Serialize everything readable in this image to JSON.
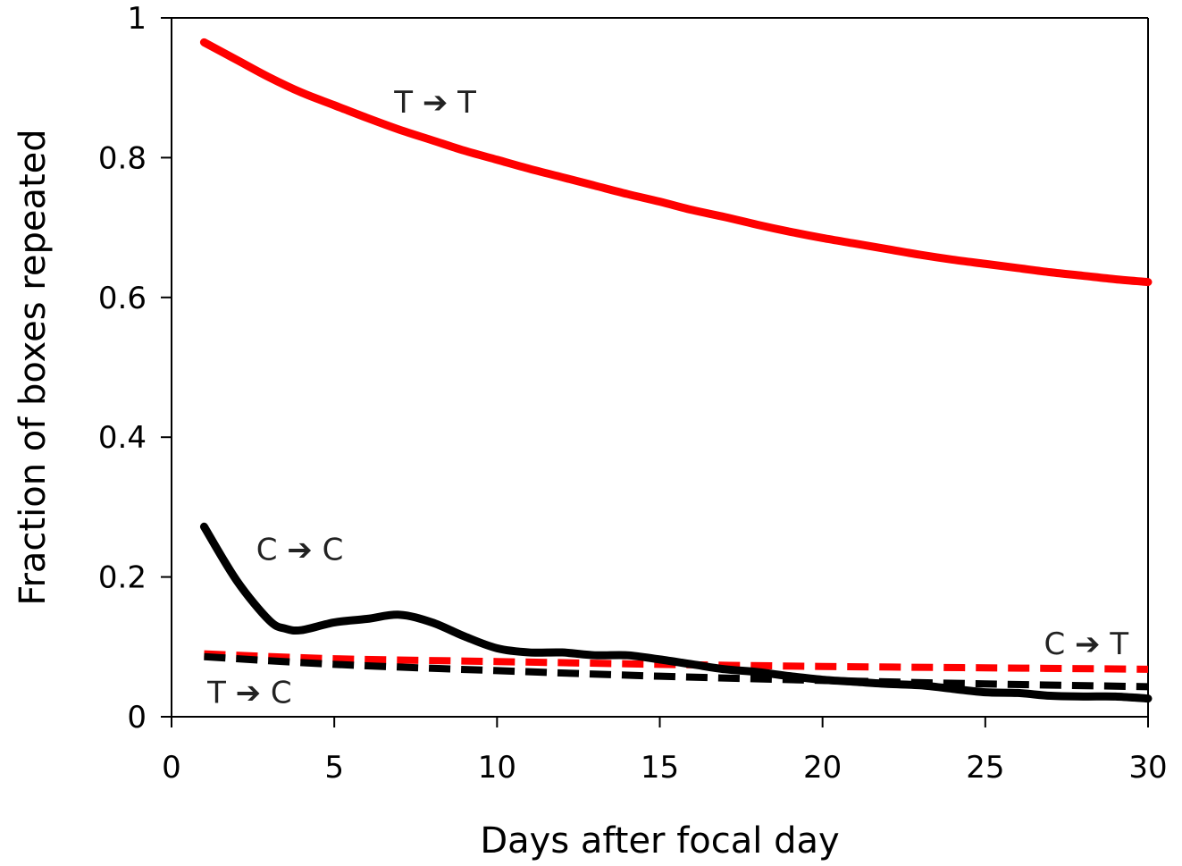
{
  "chart_data": {
    "type": "line",
    "xlabel": "Days after focal day",
    "ylabel": "Fraction of boxes repeated",
    "xlim": [
      0,
      30
    ],
    "ylim": [
      0,
      1
    ],
    "xticks": [
      0,
      5,
      10,
      15,
      20,
      25,
      30
    ],
    "yticks": [
      0,
      0.2,
      0.4,
      0.6,
      0.8,
      1
    ],
    "ytick_labels": [
      "0",
      "0.2",
      "0.4",
      "0.6",
      "0.8",
      "1"
    ],
    "grid": false,
    "series": [
      {
        "name": "T ➔ T",
        "color": "#ff0000",
        "style": "solid",
        "x": [
          1,
          2,
          3,
          4,
          5,
          6,
          7,
          8,
          9,
          10,
          11,
          12,
          13,
          14,
          15,
          16,
          17,
          18,
          19,
          20,
          21,
          22,
          23,
          24,
          25,
          26,
          27,
          28,
          29,
          30
        ],
        "y": [
          0.965,
          0.94,
          0.915,
          0.893,
          0.875,
          0.857,
          0.84,
          0.825,
          0.81,
          0.797,
          0.784,
          0.772,
          0.76,
          0.748,
          0.737,
          0.725,
          0.715,
          0.704,
          0.694,
          0.685,
          0.677,
          0.669,
          0.661,
          0.654,
          0.648,
          0.642,
          0.636,
          0.631,
          0.626,
          0.622
        ]
      },
      {
        "name": "C ➔ C",
        "color": "#000000",
        "style": "solid",
        "x": [
          1,
          2,
          3,
          3.5,
          4,
          5,
          6,
          7,
          8,
          9,
          10,
          11,
          12,
          13,
          14,
          15,
          16,
          17,
          18,
          19,
          20,
          21,
          22,
          23,
          24,
          25,
          26,
          27,
          28,
          29,
          30
        ],
        "y": [
          0.272,
          0.195,
          0.138,
          0.126,
          0.124,
          0.135,
          0.14,
          0.146,
          0.135,
          0.115,
          0.098,
          0.092,
          0.092,
          0.088,
          0.088,
          0.082,
          0.075,
          0.068,
          0.064,
          0.058,
          0.053,
          0.05,
          0.047,
          0.045,
          0.04,
          0.035,
          0.034,
          0.03,
          0.029,
          0.029,
          0.026
        ]
      },
      {
        "name": "C ➔ T",
        "color": "#ff0000",
        "style": "dashed",
        "x": [
          1,
          5,
          10,
          15,
          20,
          25,
          30
        ],
        "y": [
          0.09,
          0.083,
          0.079,
          0.075,
          0.072,
          0.07,
          0.068
        ]
      },
      {
        "name": "T ➔ C",
        "color": "#000000",
        "style": "dashed",
        "x": [
          1,
          5,
          10,
          15,
          20,
          25,
          30
        ],
        "y": [
          0.086,
          0.075,
          0.066,
          0.058,
          0.052,
          0.047,
          0.043
        ]
      }
    ],
    "annotations": [
      "T ➔ T",
      "C ➔ C",
      "C ➔ T",
      "T ➔ C"
    ]
  }
}
